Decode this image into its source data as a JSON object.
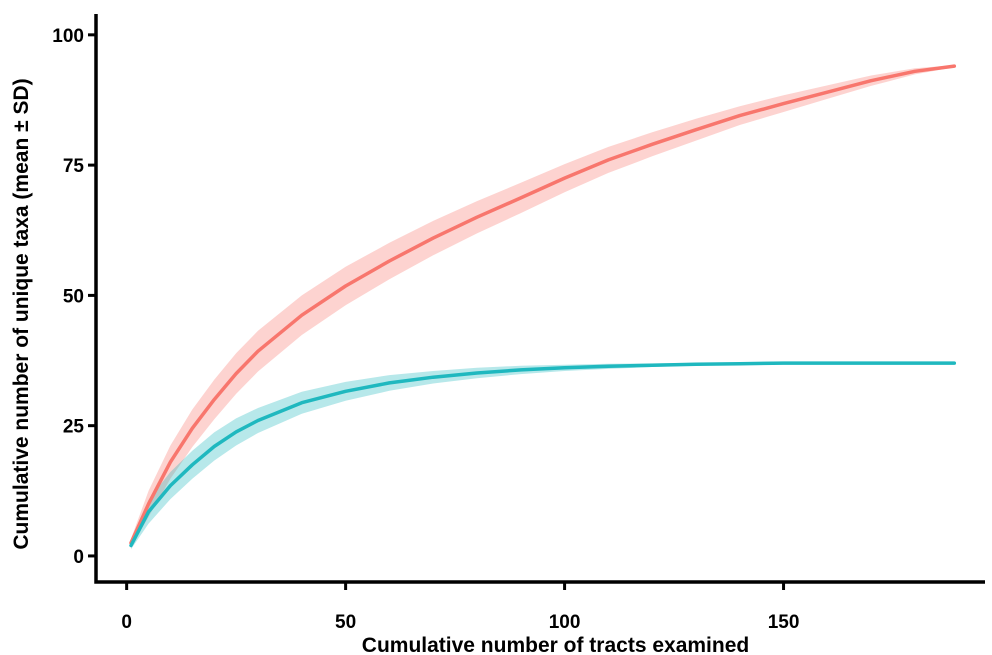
{
  "chart_data": {
    "type": "line",
    "xlabel": "Cumulative number of tracts examined",
    "ylabel": "Cumulative number of unique taxa (mean ± SD)",
    "xlim": [
      -7,
      196
    ],
    "ylim": [
      -5,
      104
    ],
    "x_ticks": [
      0,
      50,
      100,
      150
    ],
    "y_ticks": [
      0,
      25,
      50,
      75,
      100
    ],
    "grid": false,
    "legend": "none",
    "series": [
      {
        "color": "#F8766D",
        "band_color": "#F8766D",
        "x": [
          1,
          5,
          10,
          15,
          20,
          25,
          30,
          40,
          50,
          60,
          70,
          80,
          90,
          100,
          110,
          120,
          130,
          140,
          150,
          160,
          170,
          180,
          189
        ],
        "mean": [
          2.5,
          10,
          18,
          24.5,
          30,
          35,
          39.3,
          46.2,
          51.8,
          56.6,
          61,
          65,
          68.7,
          72.5,
          76,
          79,
          81.8,
          84.5,
          86.8,
          89,
          91.2,
          93,
          94
        ],
        "sd": [
          0.8,
          2.5,
          3.2,
          3.6,
          3.8,
          3.9,
          3.9,
          3.8,
          3.7,
          3.5,
          3.3,
          3.1,
          2.9,
          2.7,
          2.5,
          2.3,
          2.1,
          1.8,
          1.6,
          1.3,
          1.0,
          0.6,
          0.2
        ]
      },
      {
        "color": "#1FB8BF",
        "band_color": "#1FB8BF",
        "x": [
          1,
          5,
          10,
          15,
          20,
          25,
          30,
          40,
          50,
          60,
          70,
          80,
          90,
          100,
          110,
          120,
          130,
          140,
          150,
          160,
          170,
          180,
          189
        ],
        "mean": [
          2,
          8.5,
          13.5,
          17.5,
          21,
          23.8,
          26,
          29.4,
          31.6,
          33.2,
          34.3,
          35.1,
          35.7,
          36.1,
          36.4,
          36.6,
          36.8,
          36.9,
          37,
          37,
          37,
          37,
          37
        ],
        "sd": [
          0.7,
          2.3,
          2.6,
          2.7,
          2.7,
          2.6,
          2.4,
          2.1,
          1.8,
          1.5,
          1.2,
          1.0,
          0.8,
          0.6,
          0.5,
          0.35,
          0.25,
          0.15,
          0.1,
          0.05,
          0,
          0,
          0
        ]
      }
    ]
  }
}
